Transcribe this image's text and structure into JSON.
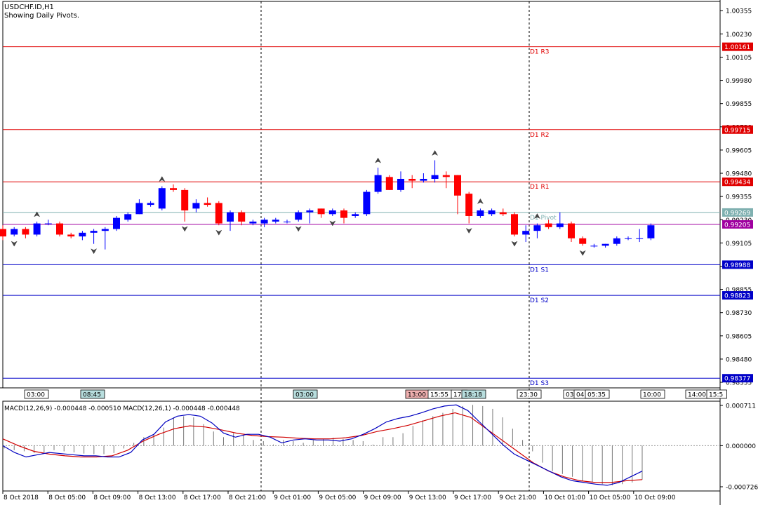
{
  "header": {
    "symbol_line": "USDCHF.ID,H1",
    "indicator_line": "Showing Daily Pivots."
  },
  "colors": {
    "bull": "#0000ff",
    "bear": "#ff0000",
    "resistance": "#e00000",
    "support": "#0000c8",
    "pivot": "#7fb0b0",
    "current": "#a000a0",
    "macd_line": "#0000c0",
    "signal_line": "#d00000"
  },
  "chart_data": {
    "type": "candlestick",
    "symbol": "USDCHF.ID",
    "timeframe": "H1",
    "price_axis": {
      "min": 0.98325,
      "max": 1.00405,
      "ticks": [
        "1.00355",
        "1.00230",
        "1.00105",
        "0.99980",
        "0.99855",
        "0.99730",
        "0.99605",
        "0.99480",
        "0.99355",
        "0.99230",
        "0.99105",
        "0.98980",
        "0.98855",
        "0.98730",
        "0.98605",
        "0.98480",
        "0.98355"
      ]
    },
    "pivots": [
      {
        "label": "D1 R3",
        "value": 1.00161,
        "tag": "1.00161",
        "kind": "resistance"
      },
      {
        "label": "D1 R2",
        "value": 0.99715,
        "tag": "0.99715",
        "kind": "resistance"
      },
      {
        "label": "D1 R1",
        "value": 0.99434,
        "tag": "0.99434",
        "kind": "resistance"
      },
      {
        "label": "D1 Pivot",
        "value": 0.99269,
        "tag": "0.99269",
        "kind": "pivot"
      },
      {
        "label": "D1 S1",
        "value": 0.98988,
        "tag": "0.98988",
        "kind": "support"
      },
      {
        "label": "D1 S2",
        "value": 0.98823,
        "tag": "0.98823",
        "kind": "support"
      },
      {
        "label": "D1 S3",
        "value": 0.98377,
        "tag": "0.98377",
        "kind": "support"
      }
    ],
    "current_price": {
      "value": 0.99205,
      "tag": "0.99205"
    },
    "candles": [
      [
        0.9918,
        0.992,
        0.9912,
        0.9914
      ],
      [
        0.9915,
        0.9919,
        0.9914,
        0.9918
      ],
      [
        0.9918,
        0.9919,
        0.9913,
        0.9915
      ],
      [
        0.9915,
        0.9922,
        0.9914,
        0.9921
      ],
      [
        0.9921,
        0.9923,
        0.992,
        0.9921
      ],
      [
        0.9921,
        0.9922,
        0.9914,
        0.9915
      ],
      [
        0.9915,
        0.9916,
        0.9913,
        0.9914
      ],
      [
        0.9914,
        0.9917,
        0.9912,
        0.9916
      ],
      [
        0.9916,
        0.9918,
        0.991,
        0.9917
      ],
      [
        0.9917,
        0.9919,
        0.9907,
        0.9918
      ],
      [
        0.9918,
        0.9925,
        0.9917,
        0.9924
      ],
      [
        0.9923,
        0.9927,
        0.9922,
        0.9926
      ],
      [
        0.9926,
        0.9934,
        0.9926,
        0.9932
      ],
      [
        0.9931,
        0.9933,
        0.993,
        0.9932
      ],
      [
        0.9929,
        0.9941,
        0.9928,
        0.994
      ],
      [
        0.994,
        0.9942,
        0.9938,
        0.9939
      ],
      [
        0.9939,
        0.994,
        0.9922,
        0.9928
      ],
      [
        0.9929,
        0.9934,
        0.9927,
        0.9932
      ],
      [
        0.9932,
        0.9935,
        0.993,
        0.9931
      ],
      [
        0.9932,
        0.9933,
        0.992,
        0.9921
      ],
      [
        0.9922,
        0.9928,
        0.9917,
        0.9927
      ],
      [
        0.9927,
        0.9928,
        0.992,
        0.9922
      ],
      [
        0.9921,
        0.9923,
        0.992,
        0.9922
      ],
      [
        0.9921,
        0.9924,
        0.9919,
        0.9923
      ],
      [
        0.9922,
        0.9924,
        0.9921,
        0.9923
      ],
      [
        0.9922,
        0.9923,
        0.9921,
        0.9922
      ],
      [
        0.9923,
        0.9928,
        0.9922,
        0.9927
      ],
      [
        0.9927,
        0.9929,
        0.9921,
        0.9928
      ],
      [
        0.9929,
        0.9929,
        0.9924,
        0.9926
      ],
      [
        0.9926,
        0.9929,
        0.9925,
        0.9928
      ],
      [
        0.9928,
        0.9929,
        0.9921,
        0.9924
      ],
      [
        0.9925,
        0.9927,
        0.9924,
        0.9926
      ],
      [
        0.9926,
        0.9939,
        0.9925,
        0.9938
      ],
      [
        0.9938,
        0.9951,
        0.9937,
        0.9947
      ],
      [
        0.9946,
        0.9947,
        0.9939,
        0.9939
      ],
      [
        0.9939,
        0.9949,
        0.9938,
        0.9945
      ],
      [
        0.9945,
        0.9947,
        0.994,
        0.9944
      ],
      [
        0.9944,
        0.9948,
        0.9943,
        0.9945
      ],
      [
        0.9945,
        0.9955,
        0.9943,
        0.9947
      ],
      [
        0.9947,
        0.9949,
        0.994,
        0.9946
      ],
      [
        0.9947,
        0.9947,
        0.9926,
        0.9936
      ],
      [
        0.9937,
        0.9938,
        0.9921,
        0.9925
      ],
      [
        0.9925,
        0.9929,
        0.9924,
        0.9928
      ],
      [
        0.9926,
        0.9929,
        0.9925,
        0.9928
      ],
      [
        0.9927,
        0.9929,
        0.9925,
        0.9926
      ],
      [
        0.9926,
        0.9927,
        0.9914,
        0.9915
      ],
      [
        0.9915,
        0.992,
        0.9911,
        0.9917
      ],
      [
        0.9917,
        0.9921,
        0.9913,
        0.992
      ],
      [
        0.9921,
        0.9923,
        0.9918,
        0.9919
      ],
      [
        0.9919,
        0.9927,
        0.9918,
        0.9921
      ],
      [
        0.9921,
        0.9922,
        0.9911,
        0.9913
      ],
      [
        0.9913,
        0.9914,
        0.9909,
        0.991
      ],
      [
        0.9909,
        0.991,
        0.9908,
        0.9909
      ],
      [
        0.9909,
        0.991,
        0.9908,
        0.991
      ],
      [
        0.991,
        0.9914,
        0.9909,
        0.9913
      ],
      [
        0.9913,
        0.9914,
        0.9912,
        0.9913
      ],
      [
        0.9913,
        0.9918,
        0.9911,
        0.9913
      ],
      [
        0.9913,
        0.9921,
        0.9912,
        0.992
      ]
    ],
    "fractals_up": [
      3,
      14,
      33,
      38,
      42,
      47
    ],
    "fractals_down": [
      1,
      8,
      16,
      19,
      26,
      29,
      41,
      45,
      51
    ],
    "macd": {
      "label": "MACD(12,26,9) -0.000448 -0.000510 MACD(12,26,1) -0.000448 -0.000448",
      "ylim": [
        -0.000726,
        0.000711
      ],
      "ticks": [
        "0.000711",
        "0.000000",
        "-0.000726"
      ],
      "histogram": [
        -5e-05,
        -8e-05,
        -0.0001,
        -0.00013,
        -0.00012,
        -8e-05,
        -0.0001,
        -0.00012,
        -0.00014,
        -0.00015,
        -0.00015,
        -0.00013,
        -5e-05,
        5e-05,
        0.00015,
        0.0002,
        0.00032,
        0.0005,
        0.00052,
        0.0005,
        0.00038,
        0.00025,
        0.00015,
        0.00022,
        0.00018,
        0.0001,
        8e-05,
        2e-05,
        0.0001,
        8e-05,
        5e-05,
        0.0001,
        0.00012,
        0.00014,
        0.00012,
        0.0001,
        8e-05,
        2e-05,
        0.00015,
        0.00015,
        0.00022,
        0.00035,
        0.00045,
        0.00052,
        0.00058,
        0.00065,
        0.0007,
        0.00072,
        0.0007,
        0.00065,
        0.0005,
        0.0003,
        0.0001,
        -0.0001,
        -0.0003,
        -0.00045,
        -0.0005,
        -0.00055,
        -0.00062,
        -0.00065,
        -0.00068,
        -0.0007,
        -0.00068,
        -0.00065,
        -0.0006
      ],
      "macd_line": [
        0.0,
        -0.00012,
        -0.0002,
        -0.00016,
        -0.00012,
        -0.00014,
        -0.00016,
        -0.00018,
        -0.00018,
        -0.0002,
        -0.0002,
        -0.00012,
        0.0001,
        0.0002,
        0.00042,
        0.00052,
        0.00055,
        0.00052,
        0.0004,
        0.00022,
        0.00015,
        0.0002,
        0.0002,
        0.00015,
        5e-05,
        0.0001,
        0.00012,
        0.0001,
        0.0001,
        8e-05,
        0.00012,
        0.0002,
        0.0003,
        0.00042,
        0.00048,
        0.00052,
        0.00058,
        0.00065,
        0.0007,
        0.00072,
        0.00062,
        0.00042,
        0.00022,
        2e-05,
        -0.00015,
        -0.00025,
        -0.00035,
        -0.00045,
        -0.00055,
        -0.00062,
        -0.00065,
        -0.00068,
        -0.0007,
        -0.00065,
        -0.00055,
        -0.00045
      ],
      "signal_line": [
        0.00012,
        0.0,
        -0.0001,
        -0.00015,
        -0.00018,
        -0.0002,
        -0.0002,
        -0.00018,
        -8e-05,
        8e-05,
        0.0002,
        0.0003,
        0.00035,
        0.00033,
        0.00028,
        0.00022,
        0.00018,
        0.00016,
        0.00015,
        0.00013,
        0.00012,
        0.00012,
        0.00014,
        0.00018,
        0.00025,
        0.0003,
        0.00036,
        0.00044,
        0.00052,
        0.00058,
        0.0005,
        0.0003,
        0.0001,
        -0.0001,
        -0.0003,
        -0.00045,
        -0.00055,
        -0.00062,
        -0.00065,
        -0.00065,
        -0.00062,
        -0.0006
      ]
    },
    "time_labels": [
      "8 Oct 2018",
      "8 Oct 05:00",
      "8 Oct 09:00",
      "8 Oct 13:00",
      "8 Oct 17:00",
      "8 Oct 21:00",
      "9 Oct 01:00",
      "9 Oct 05:00",
      "9 Oct 09:00",
      "9 Oct 13:00",
      "9 Oct 17:00",
      "9 Oct 21:00",
      "10 Oct 01:00",
      "10 Oct 05:00",
      "10 Oct 09:00"
    ],
    "event_tags": [
      {
        "text": "03:00",
        "style": "plain"
      },
      {
        "text": "08:45",
        "style": "teal"
      },
      {
        "text": "03:00",
        "style": "teal"
      },
      {
        "text": "13:00",
        "style": "red"
      },
      {
        "text": "15:55",
        "style": "plain"
      },
      {
        "text": "17:",
        "style": "plain"
      },
      {
        "text": "18:18",
        "style": "teal"
      },
      {
        "text": "23:30",
        "style": "plain"
      },
      {
        "text": "03:",
        "style": "plain"
      },
      {
        "text": "04:",
        "style": "plain"
      },
      {
        "text": "05:35",
        "style": "plain"
      },
      {
        "text": "10:00",
        "style": "plain"
      },
      {
        "text": "14:00",
        "style": "plain"
      },
      {
        "text": "15:5",
        "style": "plain"
      }
    ]
  }
}
